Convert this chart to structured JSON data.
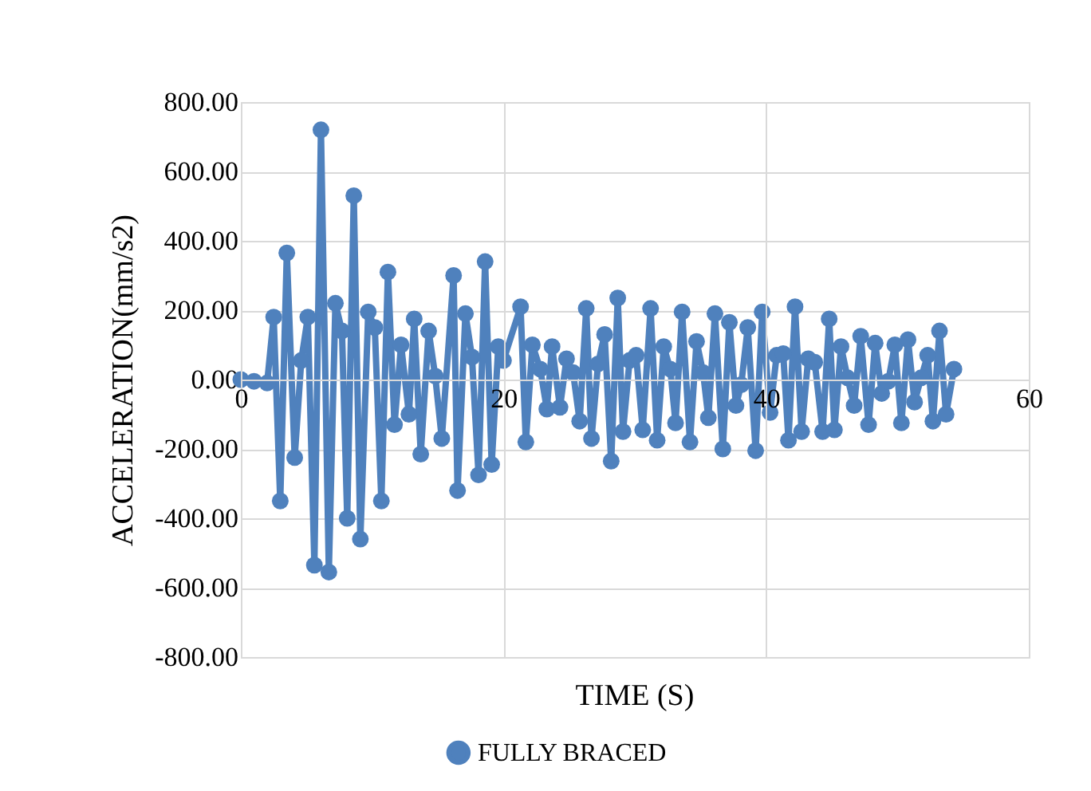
{
  "chart_data": {
    "type": "line",
    "xlabel": "TIME (S)",
    "ylabel": "ACCELERATION(mm/s2)",
    "xlim": [
      0,
      60
    ],
    "xticks": [
      0,
      20,
      40,
      60
    ],
    "ylim": [
      -800,
      800
    ],
    "yticks": [
      {
        "value": -800,
        "label": "-800.00"
      },
      {
        "value": -600,
        "label": "-600.00"
      },
      {
        "value": -400,
        "label": "-400.00"
      },
      {
        "value": -200,
        "label": "-200.00"
      },
      {
        "value": 0,
        "label": "0.00"
      },
      {
        "value": 200,
        "label": "200.00"
      },
      {
        "value": 400,
        "label": "400.00"
      },
      {
        "value": 600,
        "label": "600.00"
      },
      {
        "value": 800,
        "label": "800.00"
      }
    ],
    "grid": true,
    "legend": "bottom",
    "marker": "circle",
    "line_style": "solid",
    "series": [
      {
        "name": "FULLY BRACED",
        "color": "#4f81bd",
        "x": [
          0,
          1,
          2,
          2.5,
          3,
          3.5,
          4.1,
          4.6,
          5.1,
          5.6,
          6.1,
          6.7,
          7.2,
          7.7,
          8.1,
          8.6,
          9.1,
          9.7,
          10.2,
          10.7,
          11.2,
          11.7,
          12.2,
          12.8,
          13.2,
          13.7,
          14.3,
          14.8,
          15.3,
          16.2,
          16.5,
          17.1,
          17.6,
          18.1,
          18.6,
          19.1,
          19.6,
          20,
          21.3,
          21.7,
          22.2,
          22.8,
          23.3,
          23.7,
          24.3,
          24.8,
          25.3,
          25.8,
          26.3,
          26.7,
          27.2,
          27.7,
          28.2,
          28.7,
          29.1,
          29.6,
          30.1,
          30.6,
          31.2,
          31.7,
          32.2,
          32.7,
          33.1,
          33.6,
          34.2,
          34.7,
          35.2,
          35.6,
          36.1,
          36.7,
          37.2,
          37.7,
          38.1,
          38.6,
          39.2,
          39.7,
          40.3,
          40.8,
          41.3,
          41.7,
          42.2,
          42.7,
          43.2,
          43.7,
          44.3,
          44.8,
          45.2,
          45.7,
          46.2,
          46.7,
          47.2,
          47.8,
          48.3,
          48.8,
          49.3,
          49.8,
          50.3,
          50.8,
          51.3,
          51.8,
          52.3,
          52.7,
          53.2,
          53.7,
          54.3
        ],
        "values": [
          0,
          -5,
          -10,
          180,
          -350,
          365,
          -225,
          55,
          180,
          -535,
          720,
          -555,
          220,
          140,
          -400,
          530,
          -460,
          195,
          150,
          -350,
          310,
          -130,
          100,
          -100,
          175,
          -215,
          140,
          10,
          -170,
          300,
          -320,
          190,
          65,
          -275,
          340,
          -245,
          95,
          55,
          210,
          -180,
          100,
          30,
          -85,
          95,
          -80,
          60,
          20,
          -120,
          205,
          -170,
          45,
          130,
          -235,
          235,
          -150,
          55,
          70,
          -145,
          205,
          -175,
          95,
          30,
          -125,
          195,
          -180,
          110,
          20,
          -110,
          190,
          -200,
          165,
          -75,
          -15,
          150,
          -205,
          195,
          -95,
          70,
          75,
          -175,
          210,
          -150,
          60,
          50,
          -150,
          175,
          -145,
          95,
          5,
          -75,
          125,
          -130,
          105,
          -40,
          -5,
          100,
          -125,
          115,
          -65,
          5,
          70,
          -120,
          140,
          -100,
          30
        ]
      }
    ]
  }
}
